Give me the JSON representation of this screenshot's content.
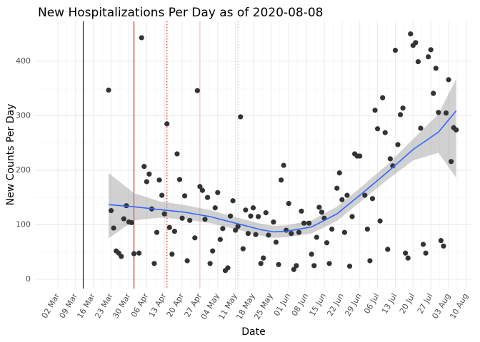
{
  "chart_data": {
    "type": "scatter",
    "title": "New Hospitalizations Per Day as of 2020-08-08",
    "x_label": "Date",
    "y_label": "New Counts Per Day",
    "color": "#333333",
    "grid": true,
    "xlim": [
      "2020-02-22",
      "2020-08-12"
    ],
    "ylim": [
      -17,
      473
    ],
    "yticks": [
      0,
      100,
      200,
      300,
      400
    ],
    "xticks": [
      {
        "value": "2020-03-02",
        "label": "02 Mar"
      },
      {
        "value": "2020-03-09",
        "label": "09 Mar"
      },
      {
        "value": "2020-03-16",
        "label": "16 Mar"
      },
      {
        "value": "2020-03-23",
        "label": "23 Mar"
      },
      {
        "value": "2020-03-30",
        "label": "30 Mar"
      },
      {
        "value": "2020-04-06",
        "label": "06 Apr"
      },
      {
        "value": "2020-04-13",
        "label": "13 Apr"
      },
      {
        "value": "2020-04-20",
        "label": "20 Apr"
      },
      {
        "value": "2020-04-27",
        "label": "27 Apr"
      },
      {
        "value": "2020-05-04",
        "label": "04 May"
      },
      {
        "value": "2020-05-11",
        "label": "11 May"
      },
      {
        "value": "2020-05-18",
        "label": "18 May"
      },
      {
        "value": "2020-05-25",
        "label": "25 May"
      },
      {
        "value": "2020-06-01",
        "label": "01 Jun"
      },
      {
        "value": "2020-06-08",
        "label": "08 Jun"
      },
      {
        "value": "2020-06-15",
        "label": "15 Jun"
      },
      {
        "value": "2020-06-22",
        "label": "22 Jun"
      },
      {
        "value": "2020-06-29",
        "label": "29 Jun"
      },
      {
        "value": "2020-07-06",
        "label": "06 Jul"
      },
      {
        "value": "2020-07-13",
        "label": "13 Jul"
      },
      {
        "value": "2020-07-20",
        "label": "20 Jul"
      },
      {
        "value": "2020-07-27",
        "label": "27 Jul"
      },
      {
        "value": "2020-08-03",
        "label": "03 Aug"
      },
      {
        "value": "2020-08-10",
        "label": "10 Aug"
      }
    ],
    "x": [
      "2020-03-22",
      "2020-03-23",
      "2020-03-24",
      "2020-03-25",
      "2020-03-26",
      "2020-03-27",
      "2020-03-28",
      "2020-03-29",
      "2020-03-30",
      "2020-03-31",
      "2020-04-01",
      "2020-04-03",
      "2020-04-04",
      "2020-04-05",
      "2020-04-06",
      "2020-04-07",
      "2020-04-08",
      "2020-04-09",
      "2020-04-10",
      "2020-04-11",
      "2020-04-12",
      "2020-04-13",
      "2020-04-14",
      "2020-04-15",
      "2020-04-16",
      "2020-04-17",
      "2020-04-18",
      "2020-04-19",
      "2020-04-20",
      "2020-04-21",
      "2020-04-22",
      "2020-04-23",
      "2020-04-25",
      "2020-04-26",
      "2020-04-27",
      "2020-04-28",
      "2020-04-29",
      "2020-04-30",
      "2020-05-01",
      "2020-05-02",
      "2020-05-03",
      "2020-05-04",
      "2020-05-05",
      "2020-05-06",
      "2020-05-07",
      "2020-05-08",
      "2020-05-09",
      "2020-05-10",
      "2020-05-11",
      "2020-05-12",
      "2020-05-13",
      "2020-05-14",
      "2020-05-15",
      "2020-05-16",
      "2020-05-17",
      "2020-05-18",
      "2020-05-19",
      "2020-05-20",
      "2020-05-21",
      "2020-05-22",
      "2020-05-23",
      "2020-05-24",
      "2020-05-26",
      "2020-05-27",
      "2020-05-28",
      "2020-05-29",
      "2020-05-30",
      "2020-05-31",
      "2020-06-01",
      "2020-06-02",
      "2020-06-03",
      "2020-06-04",
      "2020-06-05",
      "2020-06-06",
      "2020-06-07",
      "2020-06-09",
      "2020-06-10",
      "2020-06-11",
      "2020-06-12",
      "2020-06-13",
      "2020-06-14",
      "2020-06-15",
      "2020-06-16",
      "2020-06-17",
      "2020-06-18",
      "2020-06-20",
      "2020-06-21",
      "2020-06-22",
      "2020-06-23",
      "2020-06-24",
      "2020-06-25",
      "2020-06-26",
      "2020-06-27",
      "2020-06-28",
      "2020-06-29",
      "2020-07-01",
      "2020-07-02",
      "2020-07-03",
      "2020-07-04",
      "2020-07-05",
      "2020-07-06",
      "2020-07-07",
      "2020-07-08",
      "2020-07-09",
      "2020-07-10",
      "2020-07-11",
      "2020-07-12",
      "2020-07-13",
      "2020-07-14",
      "2020-07-15",
      "2020-07-16",
      "2020-07-17",
      "2020-07-18",
      "2020-07-19",
      "2020-07-20",
      "2020-07-21",
      "2020-07-22",
      "2020-07-23",
      "2020-07-24",
      "2020-07-25",
      "2020-07-26",
      "2020-07-27",
      "2020-07-28",
      "2020-07-29",
      "2020-07-30",
      "2020-07-31",
      "2020-08-01",
      "2020-08-02",
      "2020-08-03",
      "2020-08-04",
      "2020-08-05",
      "2020-08-06"
    ],
    "values": [
      347,
      126,
      94,
      52,
      48,
      42,
      111,
      135,
      105,
      104,
      47,
      48,
      443,
      207,
      179,
      193,
      129,
      29,
      86,
      182,
      154,
      120,
      285,
      95,
      46,
      88,
      230,
      183,
      112,
      153,
      34,
      108,
      76,
      346,
      170,
      163,
      110,
      150,
      29,
      52,
      131,
      159,
      73,
      93,
      16,
      21,
      116,
      144,
      90,
      97,
      298,
      56,
      127,
      84,
      116,
      131,
      82,
      115,
      29,
      39,
      122,
      81,
      105,
      68,
      27,
      182,
      209,
      90,
      139,
      84,
      18,
      25,
      86,
      125,
      103,
      103,
      46,
      25,
      77,
      132,
      123,
      112,
      67,
      29,
      92,
      167,
      195,
      146,
      86,
      154,
      24,
      115,
      230,
      226,
      226,
      154,
      92,
      34,
      148,
      310,
      276,
      107,
      333,
      269,
      55,
      221,
      208,
      420,
      247,
      302,
      314,
      48,
      39,
      450,
      429,
      434,
      399,
      277,
      64,
      48,
      408,
      421,
      341,
      387,
      306,
      71,
      61,
      305,
      366,
      216,
      278,
      274
    ],
    "smooth": {
      "color": "#3366ff",
      "band_color": "#999999",
      "x": [
        "2020-03-22",
        "2020-04-01",
        "2020-04-11",
        "2020-04-21",
        "2020-05-01",
        "2020-05-11",
        "2020-05-21",
        "2020-05-26",
        "2020-05-31",
        "2020-06-10",
        "2020-06-20",
        "2020-06-30",
        "2020-07-10",
        "2020-07-20",
        "2020-07-30",
        "2020-08-06"
      ],
      "values": [
        137,
        133,
        128,
        123,
        115,
        103,
        91,
        87,
        88,
        96,
        120,
        158,
        197,
        238,
        270,
        309
      ],
      "lower": [
        75,
        108,
        113,
        110,
        103,
        92,
        80,
        76,
        77,
        84,
        107,
        145,
        183,
        218,
        232,
        186
      ],
      "upper": [
        195,
        158,
        143,
        136,
        127,
        114,
        102,
        98,
        99,
        108,
        133,
        171,
        211,
        257,
        303,
        368
      ]
    },
    "vlines": [
      {
        "x": "2020-03-12",
        "color": "#0000cc",
        "dash": "solid"
      },
      {
        "x": "2020-04-01",
        "color": "#dd0000",
        "dash": "solid"
      },
      {
        "x": "2020-04-14",
        "color": "#dd0000",
        "dash": "dotted"
      },
      {
        "x": "2020-04-27",
        "color": "#ffb6c1",
        "dash": "solid"
      },
      {
        "x": "2020-05-12",
        "color": "#bbbbbb",
        "dash": "dotted"
      }
    ]
  }
}
